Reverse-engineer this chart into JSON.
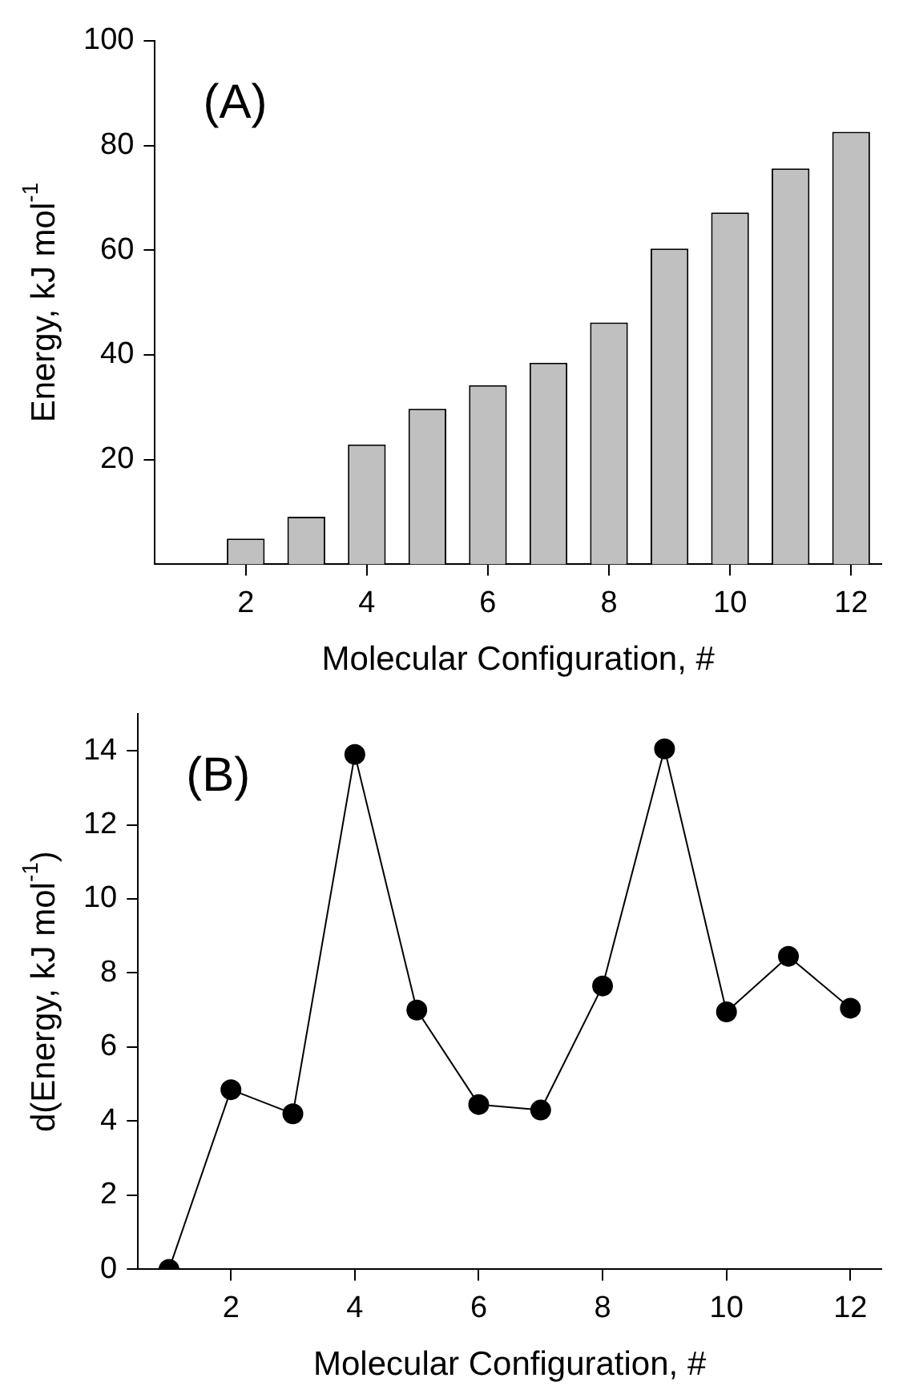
{
  "chart_data": [
    {
      "type": "bar",
      "x": [
        1,
        2,
        3,
        4,
        5,
        6,
        7,
        8,
        9,
        10,
        11,
        12
      ],
      "values": [
        0,
        4.9,
        9.1,
        22.9,
        29.7,
        34.2,
        38.5,
        46.2,
        60.3,
        67.2,
        75.6,
        82.6
      ],
      "color": "#c0c0c0",
      "xlim": [
        0.5,
        12.5
      ],
      "xticks": [
        2,
        4,
        6,
        8,
        10,
        12
      ],
      "ylim": [
        0,
        100
      ],
      "yticks": [
        20,
        40,
        60,
        80,
        100
      ],
      "xlabel": "Molecular Configuration, #",
      "ylabel": "Energy, kJ mol$^{-1}$",
      "annotations": [
        "(A)"
      ],
      "grid": false,
      "legend": false
    },
    {
      "type": "line",
      "x": [
        1,
        2,
        3,
        4,
        5,
        6,
        7,
        8,
        9,
        10,
        11,
        12
      ],
      "values": [
        0,
        4.85,
        4.2,
        13.9,
        7.0,
        4.45,
        4.3,
        7.65,
        14.05,
        6.95,
        8.45,
        7.05
      ],
      "color": "#000000",
      "marker": "circle",
      "line_style": "solid",
      "xlim": [
        0.5,
        12.5
      ],
      "xticks": [
        2,
        4,
        6,
        8,
        10,
        12
      ],
      "ylim": [
        0,
        15
      ],
      "yticks": [
        0,
        2,
        4,
        6,
        8,
        10,
        12,
        14
      ],
      "xlabel": "Molecular Configuration, #",
      "ylabel": "d(Energy, kJ mol$^{-1}$)",
      "annotations": [
        "(B)"
      ],
      "grid": false,
      "legend": false
    }
  ]
}
